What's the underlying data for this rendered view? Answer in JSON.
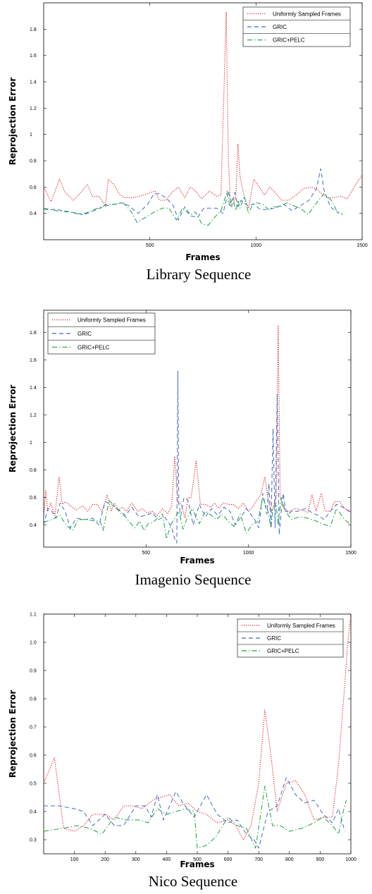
{
  "chart_data": [
    {
      "type": "line",
      "caption": "Library Sequence",
      "xlabel": "Frames",
      "ylabel": "Reprojection Error",
      "xlim": [
        0,
        1500
      ],
      "ylim": [
        0.2,
        2.0
      ],
      "xticks": [
        500,
        1000,
        1500
      ],
      "yticks": [
        0.4,
        0.6,
        0.8,
        1,
        1.2,
        1.4,
        1.6,
        1.8
      ],
      "ytick_labels": [
        "0.4",
        "0.6",
        "0.8",
        "1",
        "1.2",
        "1.4",
        "1.6",
        "1.8"
      ],
      "legend_position": "top-right",
      "series": [
        {
          "name": "Uniformly Sampled Frames",
          "color": "#e8141b",
          "dash": "dotted",
          "x": [
            0,
            35,
            75,
            100,
            140,
            175,
            205,
            230,
            260,
            290,
            305,
            330,
            355,
            380,
            415,
            450,
            490,
            525,
            545,
            575,
            605,
            635,
            665,
            690,
            715,
            745,
            780,
            815,
            835,
            860,
            870,
            880,
            895,
            905,
            915,
            925,
            945,
            965,
            990,
            1015,
            1040,
            1065,
            1095,
            1120,
            1155,
            1190,
            1225,
            1260,
            1290,
            1310,
            1335,
            1365,
            1400,
            1430,
            1470,
            1500
          ],
          "y": [
            0.6,
            0.49,
            0.66,
            0.56,
            0.5,
            0.56,
            0.62,
            0.53,
            0.53,
            0.46,
            0.66,
            0.62,
            0.55,
            0.52,
            0.52,
            0.53,
            0.55,
            0.57,
            0.5,
            0.5,
            0.56,
            0.6,
            0.52,
            0.6,
            0.57,
            0.51,
            0.57,
            0.53,
            0.54,
            1.93,
            0.8,
            0.46,
            0.48,
            0.53,
            0.93,
            0.68,
            0.52,
            0.44,
            0.66,
            0.6,
            0.54,
            0.6,
            0.55,
            0.5,
            0.5,
            0.54,
            0.59,
            0.6,
            0.58,
            0.55,
            0.52,
            0.52,
            0.53,
            0.51,
            0.62,
            0.69
          ]
        },
        {
          "name": "GRIC",
          "color": "#4169c8",
          "dash": "dashed",
          "x": [
            0,
            60,
            130,
            190,
            250,
            300,
            365,
            400,
            445,
            490,
            520,
            545,
            575,
            610,
            635,
            665,
            695,
            725,
            755,
            780,
            815,
            845,
            870,
            885,
            900,
            915,
            930,
            960,
            990,
            1020,
            1050,
            1090,
            1130,
            1170,
            1210,
            1250,
            1285,
            1305,
            1320,
            1350,
            1390
          ],
          "y": [
            0.43,
            0.43,
            0.41,
            0.39,
            0.43,
            0.46,
            0.48,
            0.46,
            0.4,
            0.47,
            0.55,
            0.55,
            0.52,
            0.46,
            0.35,
            0.45,
            0.38,
            0.37,
            0.44,
            0.44,
            0.44,
            0.4,
            0.57,
            0.45,
            0.56,
            0.45,
            0.5,
            0.46,
            0.47,
            0.43,
            0.43,
            0.44,
            0.47,
            0.42,
            0.46,
            0.5,
            0.59,
            0.74,
            0.58,
            0.45,
            0.4
          ]
        },
        {
          "name": "GRIC+PELC",
          "color": "#17a33a",
          "dash": "dashdot",
          "x": [
            0,
            60,
            120,
            180,
            240,
            300,
            340,
            375,
            410,
            440,
            480,
            520,
            560,
            590,
            625,
            655,
            690,
            715,
            745,
            775,
            805,
            835,
            865,
            875,
            890,
            905,
            915,
            925,
            945,
            965,
            985,
            1005,
            1030,
            1060,
            1085,
            1115,
            1145,
            1175,
            1210,
            1245,
            1285,
            1320,
            1355,
            1380,
            1410
          ],
          "y": [
            0.44,
            0.42,
            0.41,
            0.39,
            0.43,
            0.47,
            0.47,
            0.48,
            0.42,
            0.33,
            0.37,
            0.41,
            0.44,
            0.44,
            0.35,
            0.44,
            0.39,
            0.41,
            0.32,
            0.31,
            0.37,
            0.42,
            0.57,
            0.45,
            0.52,
            0.42,
            0.5,
            0.44,
            0.53,
            0.4,
            0.47,
            0.48,
            0.47,
            0.43,
            0.45,
            0.45,
            0.48,
            0.46,
            0.44,
            0.39,
            0.48,
            0.55,
            0.5,
            0.42,
            0.39
          ]
        }
      ]
    },
    {
      "type": "line",
      "caption": "Imagenio Sequence",
      "xlabel": "Frames",
      "ylabel": "Reprojection Error",
      "xlim": [
        0,
        1500
      ],
      "ylim": [
        0.24,
        1.96
      ],
      "xticks": [
        500,
        1000,
        1500
      ],
      "yticks": [
        0.4,
        0.6,
        0.8,
        1,
        1.2,
        1.4,
        1.6,
        1.8
      ],
      "ytick_labels": [
        "0.4",
        "0.6",
        "0.8",
        "1",
        "1.2",
        "1.4",
        "1.6",
        "1.8"
      ],
      "legend_position": "top-left",
      "series": [
        {
          "name": "Uniformly Sampled Frames",
          "color": "#e8141b",
          "dash": "dotted",
          "x": [
            0,
            10,
            20,
            35,
            55,
            75,
            90,
            105,
            130,
            160,
            190,
            215,
            240,
            260,
            285,
            310,
            330,
            345,
            365,
            385,
            405,
            430,
            460,
            480,
            505,
            530,
            555,
            580,
            605,
            625,
            640,
            655,
            670,
            690,
            705,
            720,
            745,
            765,
            790,
            815,
            835,
            855,
            875,
            905,
            925,
            950,
            975,
            1000,
            1020,
            1040,
            1060,
            1080,
            1100,
            1115,
            1125,
            1135,
            1145,
            1155,
            1165,
            1180,
            1200,
            1230,
            1260,
            1290,
            1310,
            1330,
            1355,
            1375,
            1400,
            1420,
            1445,
            1470,
            1500
          ],
          "y": [
            0.45,
            0.65,
            0.5,
            0.56,
            0.47,
            0.75,
            0.55,
            0.57,
            0.54,
            0.51,
            0.54,
            0.5,
            0.55,
            0.55,
            0.5,
            0.62,
            0.5,
            0.56,
            0.51,
            0.53,
            0.5,
            0.56,
            0.5,
            0.52,
            0.49,
            0.5,
            0.47,
            0.52,
            0.48,
            0.54,
            0.9,
            0.56,
            0.56,
            0.45,
            0.6,
            0.6,
            0.87,
            0.55,
            0.55,
            0.53,
            0.56,
            0.52,
            0.56,
            0.55,
            0.55,
            0.52,
            0.56,
            0.5,
            0.53,
            0.58,
            0.62,
            0.75,
            0.55,
            0.5,
            0.55,
            0.6,
            1.85,
            0.6,
            0.55,
            0.5,
            0.5,
            0.52,
            0.51,
            0.49,
            0.62,
            0.5,
            0.63,
            0.5,
            0.5,
            0.57,
            0.57,
            0.52,
            0.5
          ]
        },
        {
          "name": "GRIC",
          "color": "#4169c8",
          "dash": "dashed",
          "x": [
            0,
            20,
            40,
            60,
            80,
            105,
            130,
            160,
            200,
            240,
            270,
            300,
            330,
            350,
            375,
            400,
            430,
            465,
            500,
            530,
            560,
            590,
            610,
            625,
            640,
            650,
            655,
            660,
            670,
            685,
            705,
            730,
            760,
            790,
            820,
            850,
            880,
            910,
            935,
            960,
            990,
            1010,
            1030,
            1050,
            1070,
            1090,
            1100,
            1110,
            1120,
            1130,
            1140,
            1150,
            1160,
            1170,
            1180,
            1195,
            1210,
            1240,
            1280,
            1310,
            1340,
            1370,
            1400,
            1430,
            1460,
            1500
          ],
          "y": [
            0.4,
            0.52,
            0.5,
            0.45,
            0.56,
            0.5,
            0.38,
            0.45,
            0.44,
            0.45,
            0.4,
            0.57,
            0.55,
            0.53,
            0.5,
            0.47,
            0.53,
            0.46,
            0.47,
            0.49,
            0.44,
            0.46,
            0.42,
            0.38,
            0.3,
            0.27,
            1.52,
            0.55,
            0.47,
            0.6,
            0.58,
            0.4,
            0.55,
            0.46,
            0.52,
            0.47,
            0.53,
            0.5,
            0.4,
            0.45,
            0.52,
            0.48,
            0.44,
            0.38,
            0.63,
            0.48,
            0.7,
            0.38,
            1.1,
            0.38,
            1.35,
            0.33,
            0.5,
            0.63,
            0.52,
            0.48,
            0.5,
            0.5,
            0.52,
            0.49,
            0.47,
            0.44,
            0.5,
            0.55,
            0.53,
            0.49
          ]
        },
        {
          "name": "GRIC+PELC",
          "color": "#17a33a",
          "dash": "dashdot",
          "x": [
            0,
            40,
            80,
            110,
            140,
            170,
            210,
            250,
            275,
            290,
            320,
            350,
            380,
            400,
            420,
            445,
            470,
            490,
            510,
            535,
            555,
            580,
            600,
            620,
            640,
            660,
            680,
            700,
            725,
            760,
            790,
            820,
            845,
            870,
            900,
            930,
            960,
            990,
            1020,
            1045,
            1070,
            1095,
            1110,
            1120,
            1135,
            1145,
            1160,
            1180,
            1210,
            1250,
            1290,
            1330,
            1360,
            1400,
            1430,
            1470,
            1500
          ],
          "y": [
            0.42,
            0.44,
            0.47,
            0.4,
            0.36,
            0.44,
            0.44,
            0.43,
            0.43,
            0.36,
            0.58,
            0.53,
            0.48,
            0.46,
            0.42,
            0.38,
            0.43,
            0.36,
            0.41,
            0.42,
            0.45,
            0.48,
            0.3,
            0.4,
            0.45,
            0.5,
            0.37,
            0.45,
            0.52,
            0.41,
            0.5,
            0.47,
            0.44,
            0.48,
            0.43,
            0.39,
            0.48,
            0.34,
            0.41,
            0.42,
            0.6,
            0.5,
            0.38,
            0.53,
            0.56,
            0.4,
            0.6,
            0.5,
            0.44,
            0.46,
            0.45,
            0.43,
            0.41,
            0.39,
            0.52,
            0.44,
            0.4
          ]
        }
      ]
    },
    {
      "type": "line",
      "caption": "Nico Sequence",
      "xlabel": "Frames",
      "ylabel": "Reprojection Error",
      "xlim": [
        0,
        1000
      ],
      "ylim": [
        0.25,
        1.1
      ],
      "xticks": [
        100,
        200,
        300,
        400,
        500,
        600,
        700,
        800,
        900,
        1000
      ],
      "yticks": [
        0.3,
        0.4,
        0.5,
        0.6,
        0.7,
        0.8,
        0.9,
        1.0,
        1.1
      ],
      "ytick_labels": [
        "0.3",
        "0.4",
        "0.5",
        "0.6",
        "0.7",
        "0.8",
        "0.9",
        "1.0",
        "1.1"
      ],
      "legend_position": "top-right",
      "series": [
        {
          "name": "Uniformly Sampled Frames",
          "color": "#e8141b",
          "dash": "dotted",
          "x": [
            0,
            35,
            65,
            100,
            130,
            160,
            200,
            230,
            260,
            290,
            320,
            355,
            380,
            410,
            440,
            470,
            500,
            530,
            565,
            600,
            625,
            650,
            675,
            700,
            720,
            740,
            760,
            790,
            820,
            850,
            880,
            910,
            940,
            960,
            980,
            990,
            1000
          ],
          "y": [
            0.5,
            0.59,
            0.34,
            0.33,
            0.35,
            0.39,
            0.39,
            0.37,
            0.42,
            0.42,
            0.41,
            0.44,
            0.45,
            0.46,
            0.42,
            0.43,
            0.4,
            0.39,
            0.36,
            0.37,
            0.35,
            0.3,
            0.35,
            0.5,
            0.76,
            0.6,
            0.4,
            0.5,
            0.51,
            0.46,
            0.37,
            0.38,
            0.38,
            0.57,
            0.85,
            1.0,
            1.1
          ]
        },
        {
          "name": "GRIC",
          "color": "#4169c8",
          "dash": "dashed",
          "x": [
            0,
            50,
            100,
            130,
            160,
            200,
            230,
            260,
            300,
            330,
            350,
            370,
            390,
            410,
            430,
            460,
            490,
            530,
            565,
            600,
            630,
            660,
            685,
            700,
            730,
            760,
            790,
            820,
            850,
            880,
            910,
            940,
            960,
            980
          ],
          "y": [
            0.42,
            0.42,
            0.41,
            0.4,
            0.35,
            0.39,
            0.35,
            0.35,
            0.42,
            0.42,
            0.38,
            0.46,
            0.37,
            0.42,
            0.47,
            0.42,
            0.38,
            0.46,
            0.39,
            0.36,
            0.37,
            0.32,
            0.3,
            0.27,
            0.4,
            0.42,
            0.52,
            0.46,
            0.43,
            0.44,
            0.39,
            0.36,
            0.41,
            0.33
          ]
        },
        {
          "name": "GRIC+PELC",
          "color": "#17a33a",
          "dash": "dashdot",
          "x": [
            0,
            60,
            110,
            150,
            190,
            230,
            270,
            310,
            340,
            370,
            400,
            430,
            460,
            490,
            500,
            530,
            560,
            600,
            630,
            660,
            690,
            720,
            745,
            770,
            800,
            840,
            880,
            910,
            940,
            960,
            975,
            985
          ],
          "y": [
            0.33,
            0.34,
            0.35,
            0.34,
            0.32,
            0.38,
            0.37,
            0.37,
            0.36,
            0.41,
            0.39,
            0.4,
            0.41,
            0.4,
            0.27,
            0.28,
            0.31,
            0.38,
            0.35,
            0.34,
            0.27,
            0.49,
            0.35,
            0.35,
            0.33,
            0.34,
            0.36,
            0.38,
            0.35,
            0.32,
            0.4,
            0.44
          ]
        }
      ]
    }
  ]
}
